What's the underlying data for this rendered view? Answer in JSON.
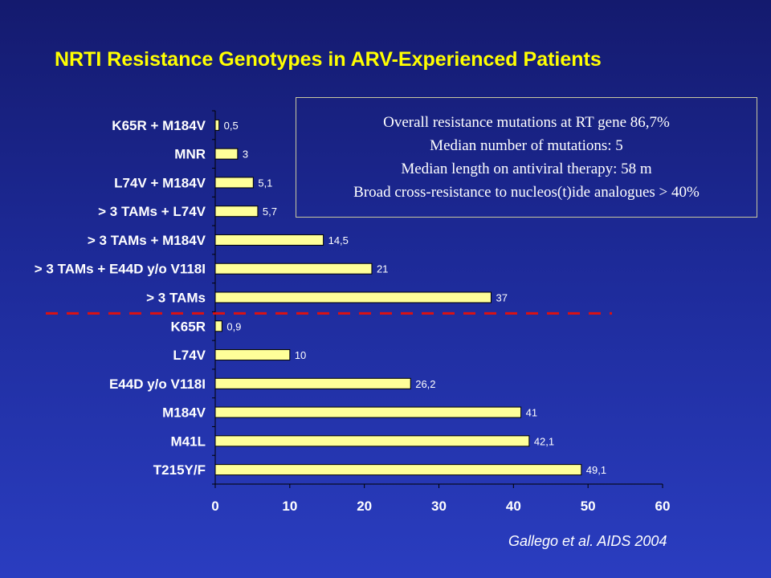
{
  "slide": {
    "title": "NRTI Resistance Genotypes in ARV-Experienced Patients",
    "info_lines": [
      "Overall resistance mutations at RT gene 86,7%",
      "Median number of mutations: 5",
      "Median length on antiviral therapy: 58 m",
      "Broad cross-resistance to nucleos(t)ide analogues > 40%"
    ],
    "citation": "Gallego et al. AIDS 2004"
  },
  "chart_data": {
    "type": "bar",
    "orientation": "horizontal",
    "categories": [
      "K65R + M184V",
      "MNR",
      "L74V + M184V",
      "> 3 TAMs + L74V",
      "> 3 TAMs + M184V",
      "> 3 TAMs + E44D y/o V118I",
      "> 3 TAMs",
      "K65R",
      "L74V",
      "E44D y/o V118I",
      "M184V",
      "M41L",
      "T215Y/F"
    ],
    "values": [
      0.5,
      3,
      5.1,
      5.7,
      14.5,
      21,
      37,
      0.9,
      10,
      26.2,
      41,
      42.1,
      49.1
    ],
    "value_labels": [
      "0,5",
      "3",
      "5,1",
      "5,7",
      "14,5",
      "21",
      "37",
      "0,9",
      "10",
      "26,2",
      "41",
      "42,1",
      "49,1"
    ],
    "xlim": [
      0,
      60
    ],
    "xticks": [
      0,
      10,
      20,
      30,
      40,
      50,
      60
    ],
    "xtick_labels": [
      "0",
      "10",
      "20",
      "30",
      "40",
      "50",
      "60"
    ],
    "separator_after_category": "> 3 TAMs",
    "grid": false,
    "legend": "none",
    "colors": {
      "bar_fill": "#ffff99",
      "bar_stroke": "#000000",
      "separator": "#dd1111",
      "axis": "#000000",
      "title": "#ffff00"
    }
  }
}
